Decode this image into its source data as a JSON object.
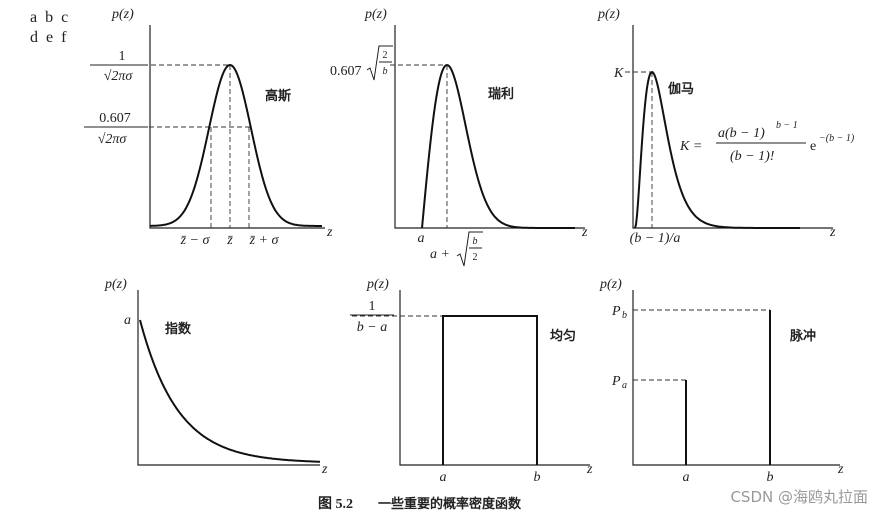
{
  "panel_letters": [
    "a b c",
    "d e f"
  ],
  "panels": [
    {
      "title": "高斯",
      "y_label": "p(z)",
      "x_label": "z",
      "y_marks": [
        {
          "num": "1",
          "den": "√2πσ"
        },
        {
          "num": "0.607",
          "den": "√2πσ"
        }
      ],
      "x_marks": [
        "z̄ − σ",
        "z̄",
        "z̄ + σ"
      ]
    },
    {
      "title": "瑞利",
      "y_label": "p(z)",
      "x_label": "z",
      "y_mark": {
        "coef": "0.607",
        "num": "2",
        "den": "b"
      },
      "x_marks": [
        "a"
      ],
      "x_mark_sqrt": {
        "prefix": "a +",
        "num": "b",
        "den": "2"
      }
    },
    {
      "title": "伽马",
      "y_label": "p(z)",
      "x_label": "z",
      "y_marks": [
        "K"
      ],
      "x_marks": [
        "(b − 1)/a"
      ],
      "formula": {
        "lhs": "K =",
        "num": "a(b − 1)",
        "num_sup": "b − 1",
        "den": "(b − 1)!",
        "base": "e",
        "exp": "−(b − 1)"
      }
    },
    {
      "title": "指数",
      "y_label": "p(z)",
      "x_label": "z",
      "y_marks": [
        "a"
      ]
    },
    {
      "title": "均匀",
      "y_label": "p(z)",
      "x_label": "z",
      "y_mark": {
        "num": "1",
        "den": "b − a"
      },
      "x_marks": [
        "a",
        "b"
      ]
    },
    {
      "title": "脉冲",
      "y_label": "p(z)",
      "x_label": "z",
      "y_marks": [
        {
          "main": "P",
          "sub": "b"
        },
        {
          "main": "P",
          "sub": "a"
        }
      ],
      "x_marks": [
        "a",
        "b"
      ]
    }
  ],
  "caption": {
    "number": "图 5.2",
    "text": "一些重要的概率密度函数"
  },
  "watermark": "CSDN @海鸥丸拉面"
}
